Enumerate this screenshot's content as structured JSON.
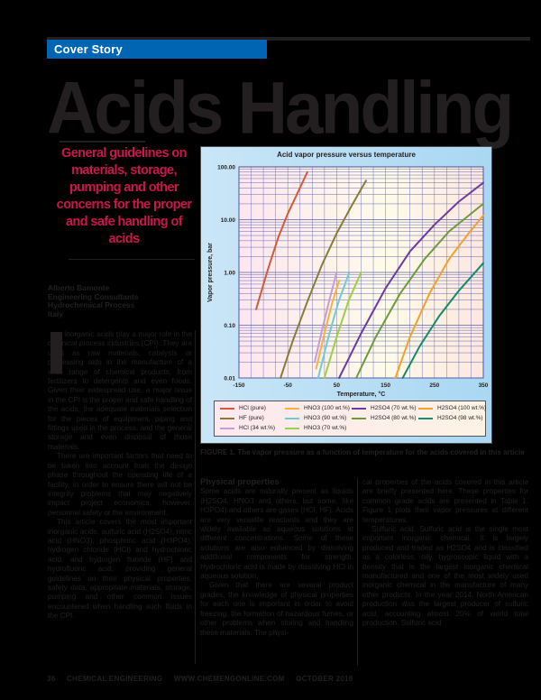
{
  "header": {
    "section_label": "Cover Story",
    "section_color": "#0066b3",
    "headline": "Acids Handling",
    "deck": "General guidelines on materials, storage, pumping and other concerns for the proper and safe handling of acids",
    "deck_color": "#c8184a"
  },
  "byline": {
    "lines": [
      "Alberto Bamonte",
      "Engineering Consultants",
      "Hydrochemical Process",
      "Italy"
    ]
  },
  "body": {
    "col1": [
      "Inorganic acids play a major role in the chemical process industries (CPI). They are used as raw materials, catalysts or processing aids in the manufacture of a wide range of chemical products, from fertilizers to detergents and even foods. Given their widespread use, a major issue in the CPI is the proper and safe handling of the acids, the adequate materials selection for the pieces of equipment, piping and fittings used in the process, and the general storage and even disposal of those materials.",
      "There are important factors that need to be taken into account from the design phase throughout the operating life of a facility, in order to ensure there will not be integrity problems that may negatively impact project economics, however, personnel safety or the environment.",
      "This article covers the most important inorganic acids: sulfuric acid (H2SO4), nitric acid (HNO3), phosphoric acid (H3PO4), hydrogen chloride (HCl) and hydrochloric acid, and hydrogen fluoride (HF) and hydrofluoric acid, providing general guidelines on their physical properties, safety data, appropriate materials, storage, pumping and other common issues encountered when handling such fluids in the CPI."
    ],
    "col2_heading": "Physical properties",
    "col2": [
      "Some acids are naturally present as liquids (H2SO4, HNO3 and others, but some, like H3PO4) and others are gases (HCl, HF). Acids are very versatile reactants and they are widely available as aqueous solutions at different concentrations. Some of these solutions are also enhanced by dissolving additional components for strength. Hydrochloric acid is made by dissolving HCl in aqueous solution.",
      "Given that there are several product grades, the knowledge of physical properties for each one is important in order to avoid freezing, the formation of hazardous fumes, or other problems when storing and handling these materials. The physi-"
    ],
    "col3": [
      "cal properties of the acids covered in this article are briefly presented here. These properties for common grade acids are presented in Table 1. Figure 1 plots their vapor pressures at different temperatures.",
      "Sulfuric acid. Sulfuric acid is the single most important inorganic chemical. It is largely produced and traded as H2SO4 and is classified as a colorless, oily, hygroscopic liquid with a density that is the largest inorganic chemical manufactured and one of the most widely used inorganic chemical in the manufacture of many other products. In the year 2014, North American production was the largest producer of sulfuric acid, accounting almost 20% of world total production. Sulfuric acid"
    ]
  },
  "figure": {
    "label": "FIGURE 1.",
    "caption": "FIGURE 1. The vapor pressure as a function of temperature for the acids covered in this article"
  },
  "footer": {
    "page_number": "36",
    "publication": "CHEMICAL ENGINEERING",
    "url": "WWW.CHEMENGONLINE.COM",
    "issue": "OCTOBER 2016"
  },
  "chart_data": {
    "type": "line",
    "title": "Acid vapor pressure versus temperature",
    "xlabel": "Temperature, °C",
    "ylabel": "Vapor pressure, bar",
    "xlim": [
      -150,
      350
    ],
    "ylim": [
      0.01,
      100
    ],
    "yscale": "log",
    "x_ticks": [
      "-150",
      "-50",
      "50",
      "150",
      "250",
      "350"
    ],
    "y_ticks": [
      "0.01",
      "0.10",
      "1.00",
      "10.00",
      "100.00"
    ],
    "grid": true,
    "legend_position": "bottom",
    "series": [
      {
        "name": "HCl (pure)",
        "color": "#d35a36",
        "x": [
          -115,
          -90,
          -70,
          -50,
          -30,
          -10
        ],
        "y": [
          0.2,
          1.2,
          4.5,
          13,
          32,
          80
        ]
      },
      {
        "name": "HF (pure)",
        "color": "#8a7a3a",
        "x": [
          -65,
          -40,
          -10,
          20,
          50,
          80,
          110
        ],
        "y": [
          0.01,
          0.05,
          0.28,
          1.4,
          5.5,
          18,
          55
        ]
      },
      {
        "name": "HCl (34 wt.%)",
        "color": "#c79bd8",
        "x": [
          5,
          20,
          35,
          50
        ],
        "y": [
          0.02,
          0.08,
          0.3,
          1.0
        ]
      },
      {
        "name": "HNO3 (100 wt.%)",
        "color": "#f7b33b",
        "x": [
          8,
          25,
          40,
          55
        ],
        "y": [
          0.015,
          0.07,
          0.25,
          0.7
        ]
      },
      {
        "name": "HNO3 (90 wt.%)",
        "color": "#6ccbd6",
        "x": [
          12,
          35,
          55,
          75
        ],
        "y": [
          0.01,
          0.07,
          0.3,
          0.95
        ]
      },
      {
        "name": "HNO3 (70 wt.%)",
        "color": "#9bcf44",
        "x": [
          25,
          50,
          75,
          100
        ],
        "y": [
          0.01,
          0.06,
          0.3,
          1.0
        ]
      },
      {
        "name": "H2SO4 (70 wt.%)",
        "color": "#6f3aa0",
        "x": [
          55,
          100,
          150,
          200,
          250,
          300,
          350
        ],
        "y": [
          0.01,
          0.07,
          0.5,
          2.5,
          8,
          22,
          50
        ]
      },
      {
        "name": "H2SO4 (80 wt.%)",
        "color": "#6d9a3a",
        "x": [
          90,
          130,
          180,
          230,
          280,
          350
        ],
        "y": [
          0.01,
          0.06,
          0.4,
          1.8,
          6,
          20
        ]
      },
      {
        "name": "H2SO4 (100 wt.%)",
        "color": "#f0a22a",
        "x": [
          170,
          200,
          240,
          280,
          320,
          350
        ],
        "y": [
          0.01,
          0.06,
          0.4,
          1.8,
          5.5,
          12
        ]
      },
      {
        "name": "H2SO4 (98 wt.%)",
        "color": "#138a6a",
        "x": [
          185,
          220,
          260,
          300,
          350
        ],
        "y": [
          0.01,
          0.04,
          0.15,
          0.45,
          1.5
        ]
      }
    ]
  }
}
